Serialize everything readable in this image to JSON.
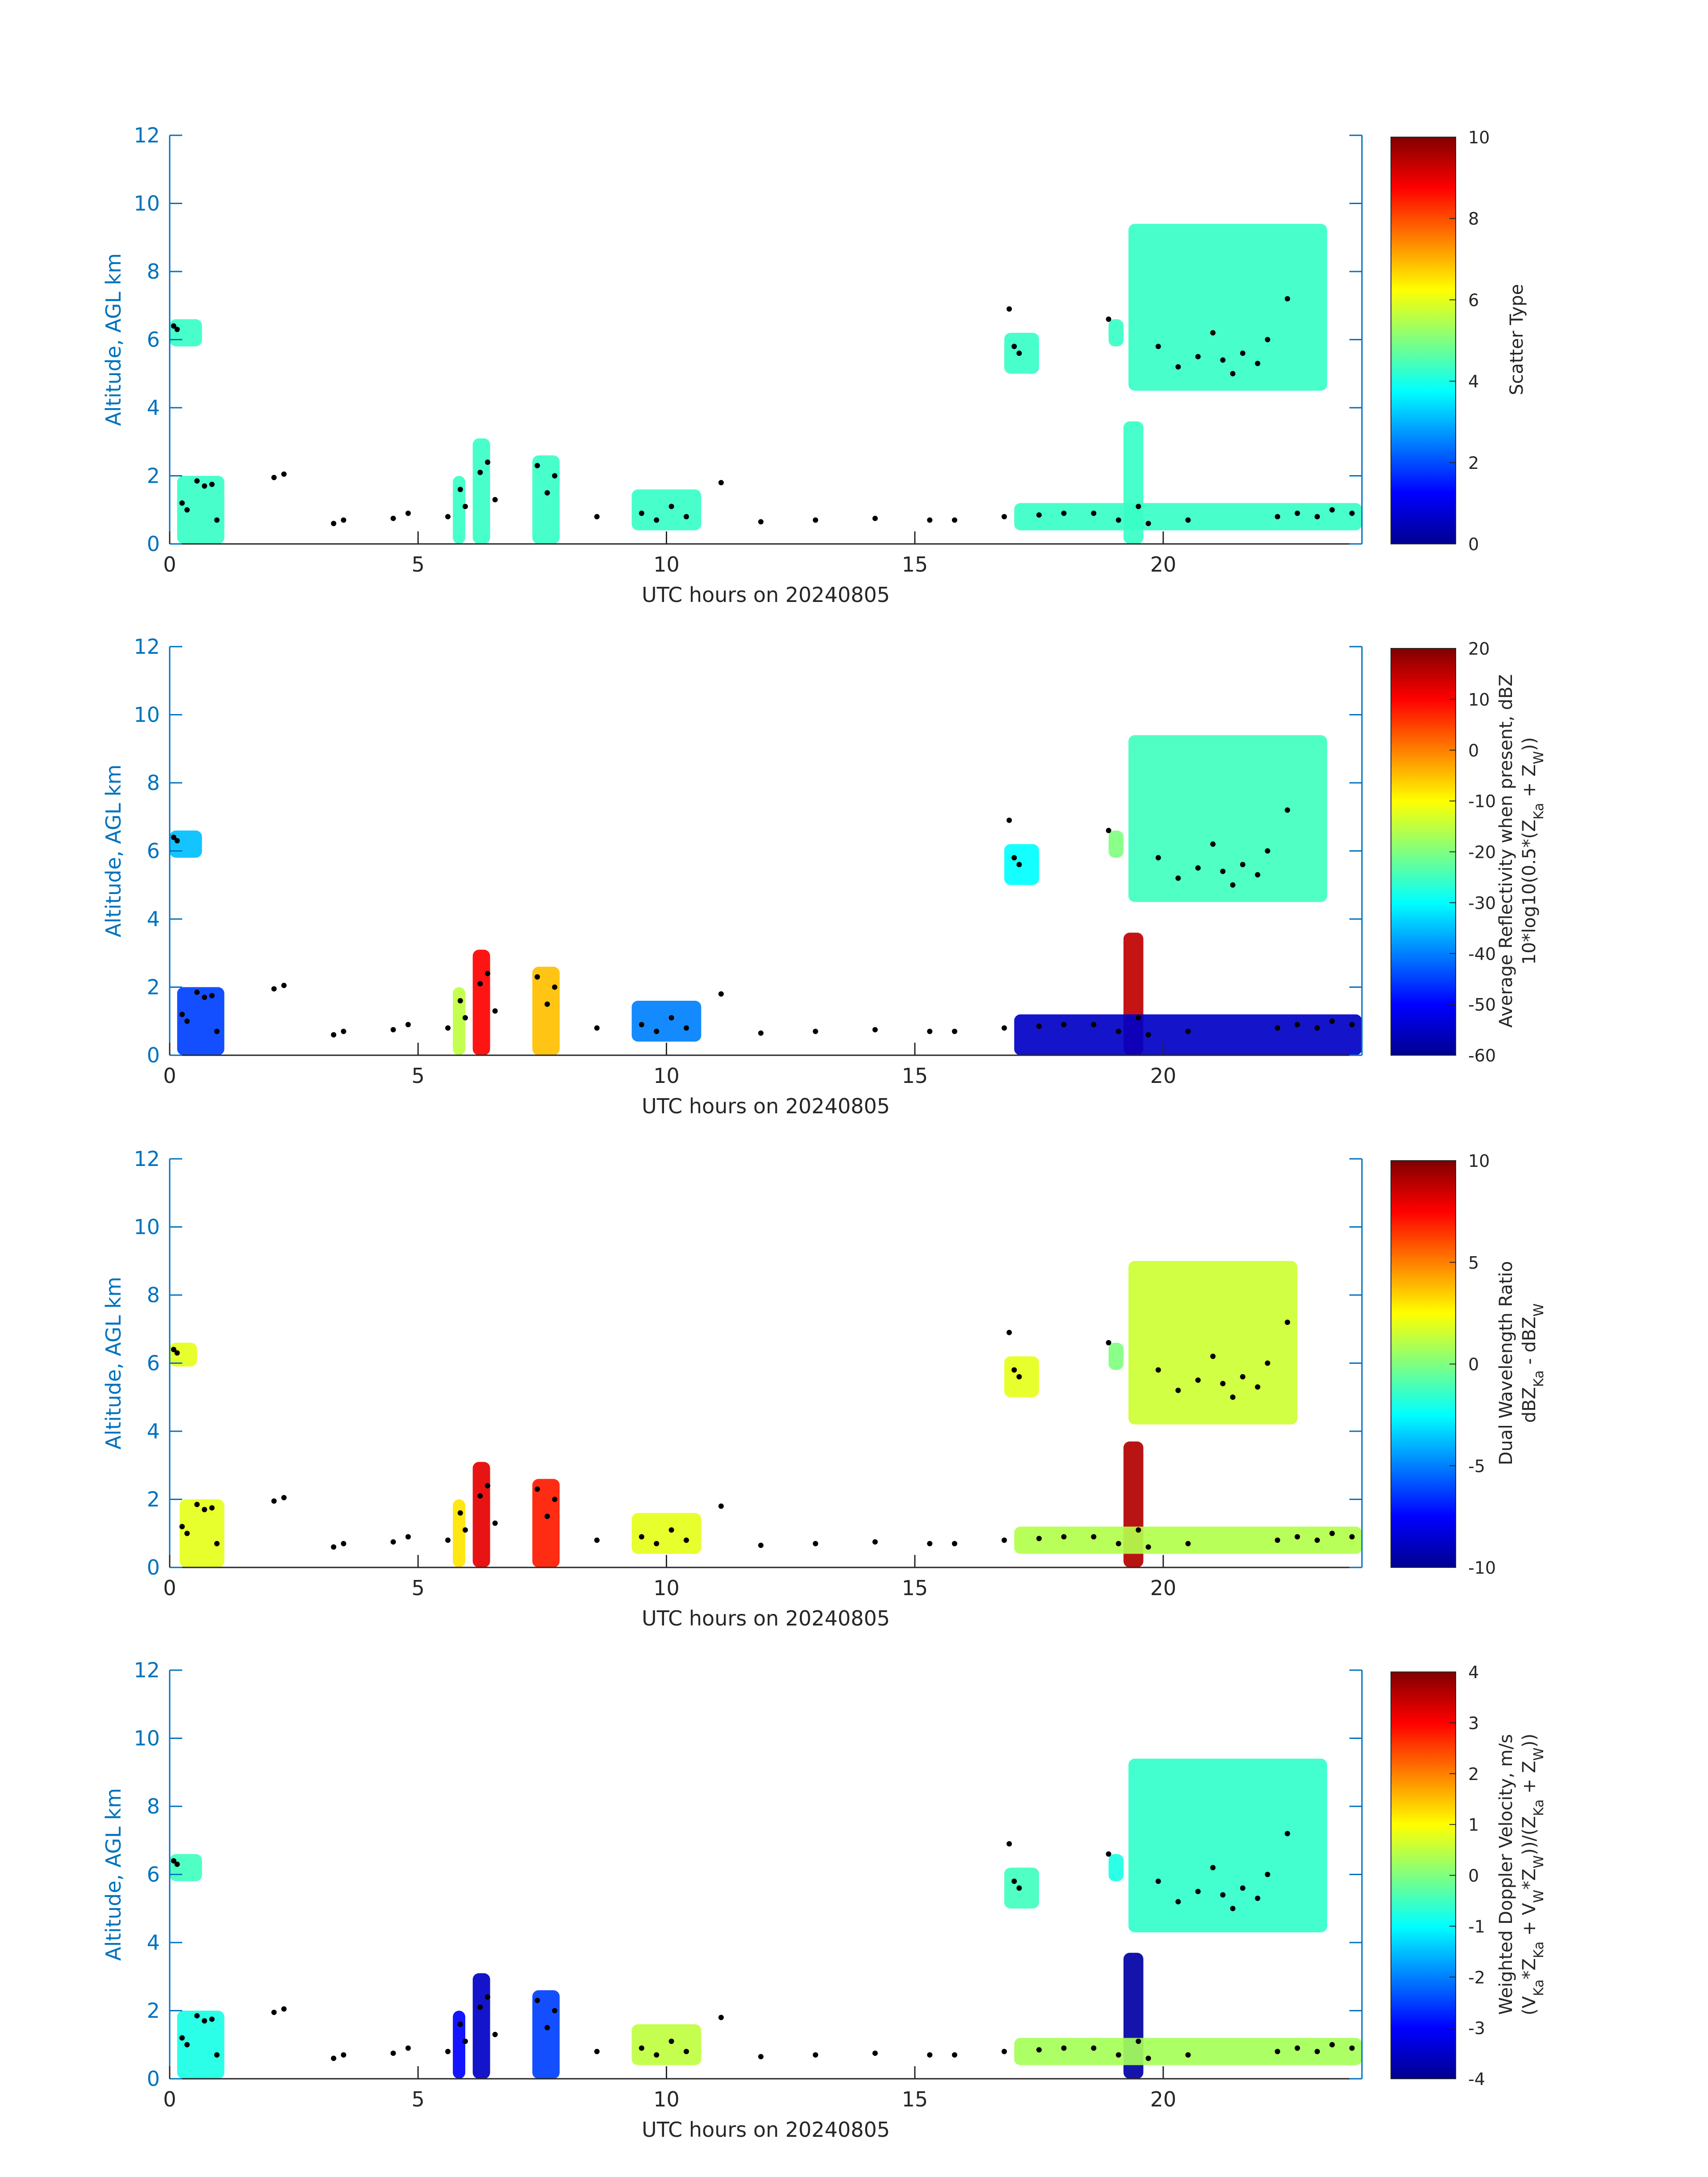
{
  "figure": {
    "date": "20240805",
    "accent_color": "#0072BD"
  },
  "chart_data": [
    {
      "type": "heatmap",
      "title": "",
      "xlabel": "UTC hours on 20240805",
      "ylabel": "Altitude, AGL km",
      "xlim": [
        0,
        24
      ],
      "ylim": [
        0,
        12
      ],
      "xticks": [
        0,
        5,
        10,
        15,
        20
      ],
      "yticks": [
        0,
        2,
        4,
        6,
        8,
        10,
        12
      ],
      "colorbar": {
        "label_lines": [
          "Scatter Type"
        ],
        "clim": [
          0,
          10
        ],
        "ticks": [
          0,
          2,
          4,
          6,
          8,
          10
        ]
      },
      "cloud_value": 4.3,
      "colormap": "jet",
      "cloud_regions": [
        {
          "t0": 0.0,
          "t1": 0.65,
          "z0": 5.8,
          "z1": 6.6,
          "value": 4.3
        },
        {
          "t0": 0.15,
          "t1": 1.1,
          "z0": 0.0,
          "z1": 2.0,
          "value": 4.3
        },
        {
          "t0": 5.7,
          "t1": 5.95,
          "z0": 0.0,
          "z1": 2.0,
          "value": 4.3
        },
        {
          "t0": 6.1,
          "t1": 6.45,
          "z0": 0.0,
          "z1": 3.1,
          "value": 4.3
        },
        {
          "t0": 7.3,
          "t1": 7.85,
          "z0": 0.0,
          "z1": 2.6,
          "value": 4.3
        },
        {
          "t0": 9.3,
          "t1": 10.7,
          "z0": 0.4,
          "z1": 1.6,
          "value": 4.3
        },
        {
          "t0": 16.8,
          "t1": 17.5,
          "z0": 5.0,
          "z1": 6.2,
          "value": 4.3
        },
        {
          "t0": 18.9,
          "t1": 19.2,
          "z0": 5.8,
          "z1": 6.6,
          "value": 4.3
        },
        {
          "t0": 19.2,
          "t1": 19.6,
          "z0": 0.0,
          "z1": 3.6,
          "value": 4.3
        },
        {
          "t0": 19.3,
          "t1": 23.3,
          "z0": 4.5,
          "z1": 9.4,
          "value": 4.3
        },
        {
          "t0": 17.0,
          "t1": 24.0,
          "z0": 0.4,
          "z1": 1.2,
          "value": 4.3
        }
      ]
    },
    {
      "type": "heatmap",
      "title": "",
      "xlabel": "UTC hours on 20240805",
      "ylabel": "Altitude, AGL km",
      "xlim": [
        0,
        24
      ],
      "ylim": [
        0,
        12
      ],
      "xticks": [
        0,
        5,
        10,
        15,
        20
      ],
      "yticks": [
        0,
        2,
        4,
        6,
        8,
        10,
        12
      ],
      "colorbar": {
        "label_lines": [
          "Average Reflectivity when present, dBZ",
          "10*log10(0.5*(Z",
          "Ka",
          " + Z",
          "W",
          "))"
        ],
        "clim": [
          -60,
          20
        ],
        "ticks": [
          -60,
          -50,
          -40,
          -30,
          -20,
          -10,
          0,
          10,
          20
        ]
      },
      "colormap": "jet",
      "cloud_regions": [
        {
          "t0": 0.0,
          "t1": 0.65,
          "z0": 5.8,
          "z1": 6.6,
          "value": -35
        },
        {
          "t0": 0.15,
          "t1": 1.1,
          "z0": 0.0,
          "z1": 2.0,
          "value": -45
        },
        {
          "t0": 5.7,
          "t1": 5.95,
          "z0": 0.0,
          "z1": 2.0,
          "value": -15
        },
        {
          "t0": 6.1,
          "t1": 6.45,
          "z0": 0.0,
          "z1": 3.1,
          "value": 10
        },
        {
          "t0": 7.3,
          "t1": 7.85,
          "z0": 0.0,
          "z1": 2.6,
          "value": -5
        },
        {
          "t0": 9.3,
          "t1": 10.7,
          "z0": 0.4,
          "z1": 1.6,
          "value": -40
        },
        {
          "t0": 16.8,
          "t1": 17.5,
          "z0": 5.0,
          "z1": 6.2,
          "value": -30
        },
        {
          "t0": 18.9,
          "t1": 19.2,
          "z0": 5.8,
          "z1": 6.6,
          "value": -20
        },
        {
          "t0": 19.2,
          "t1": 19.6,
          "z0": 0.0,
          "z1": 3.6,
          "value": 15
        },
        {
          "t0": 19.3,
          "t1": 23.3,
          "z0": 4.5,
          "z1": 9.4,
          "value": -25
        },
        {
          "t0": 17.0,
          "t1": 24.0,
          "z0": 0.0,
          "z1": 1.2,
          "value": -55
        }
      ]
    },
    {
      "type": "heatmap",
      "title": "",
      "xlabel": "UTC hours on 20240805",
      "ylabel": "Altitude, AGL km",
      "xlim": [
        0,
        24
      ],
      "ylim": [
        0,
        12
      ],
      "xticks": [
        0,
        5,
        10,
        15,
        20
      ],
      "yticks": [
        0,
        2,
        4,
        6,
        8,
        10,
        12
      ],
      "colorbar": {
        "label_lines": [
          "Dual Wavelength Ratio",
          "dBZ",
          "Ka",
          " - dBZ",
          "W"
        ],
        "clim": [
          -10,
          10
        ],
        "ticks": [
          -10,
          -5,
          0,
          5,
          10
        ]
      },
      "colormap": "jet",
      "cloud_regions": [
        {
          "t0": 0.0,
          "t1": 0.55,
          "z0": 5.9,
          "z1": 6.6,
          "value": 2
        },
        {
          "t0": 0.2,
          "t1": 1.1,
          "z0": 0.0,
          "z1": 2.0,
          "value": 2
        },
        {
          "t0": 5.7,
          "t1": 5.95,
          "z0": 0.0,
          "z1": 2.0,
          "value": 3
        },
        {
          "t0": 6.1,
          "t1": 6.45,
          "z0": 0.0,
          "z1": 3.1,
          "value": 8
        },
        {
          "t0": 7.3,
          "t1": 7.85,
          "z0": 0.0,
          "z1": 2.6,
          "value": 7
        },
        {
          "t0": 9.3,
          "t1": 10.7,
          "z0": 0.4,
          "z1": 1.6,
          "value": 2
        },
        {
          "t0": 16.8,
          "t1": 17.5,
          "z0": 5.0,
          "z1": 6.2,
          "value": 2
        },
        {
          "t0": 18.9,
          "t1": 19.2,
          "z0": 5.8,
          "z1": 6.6,
          "value": 0
        },
        {
          "t0": 19.2,
          "t1": 19.6,
          "z0": 0.0,
          "z1": 3.7,
          "value": 9
        },
        {
          "t0": 19.3,
          "t1": 22.7,
          "z0": 4.2,
          "z1": 9.0,
          "value": 1.5
        },
        {
          "t0": 17.0,
          "t1": 24.0,
          "z0": 0.4,
          "z1": 1.2,
          "value": 1
        }
      ]
    },
    {
      "type": "heatmap",
      "title": "",
      "xlabel": "UTC hours on 20240805",
      "ylabel": "Altitude, AGL km",
      "xlim": [
        0,
        24
      ],
      "ylim": [
        0,
        12
      ],
      "xticks": [
        0,
        5,
        10,
        15,
        20
      ],
      "yticks": [
        0,
        2,
        4,
        6,
        8,
        10,
        12
      ],
      "colorbar": {
        "label_lines": [
          "Weighted Doppler Velocity, m/s",
          "(V",
          "Ka",
          "*Z",
          "Ka",
          " + V",
          "W",
          "*Z",
          "W",
          "))/(Z",
          "Ka",
          " + Z",
          "W",
          "))"
        ],
        "clim": [
          -4,
          4
        ],
        "ticks": [
          -4,
          -3,
          -2,
          -1,
          0,
          1,
          2,
          3,
          4
        ]
      },
      "colormap": "jet",
      "cloud_regions": [
        {
          "t0": 0.0,
          "t1": 0.65,
          "z0": 5.8,
          "z1": 6.6,
          "value": -0.5
        },
        {
          "t0": 0.15,
          "t1": 1.1,
          "z0": 0.0,
          "z1": 2.0,
          "value": -0.8
        },
        {
          "t0": 5.7,
          "t1": 5.95,
          "z0": 0.0,
          "z1": 2.0,
          "value": -3
        },
        {
          "t0": 6.1,
          "t1": 6.45,
          "z0": 0.0,
          "z1": 3.1,
          "value": -3.5
        },
        {
          "t0": 7.3,
          "t1": 7.85,
          "z0": 0.0,
          "z1": 2.6,
          "value": -2.5
        },
        {
          "t0": 9.3,
          "t1": 10.7,
          "z0": 0.4,
          "z1": 1.6,
          "value": 0.5
        },
        {
          "t0": 16.8,
          "t1": 17.5,
          "z0": 5.0,
          "z1": 6.2,
          "value": -0.5
        },
        {
          "t0": 18.9,
          "t1": 19.2,
          "z0": 5.8,
          "z1": 6.6,
          "value": -0.8
        },
        {
          "t0": 19.2,
          "t1": 19.6,
          "z0": 0.0,
          "z1": 3.7,
          "value": -3.8
        },
        {
          "t0": 19.3,
          "t1": 23.3,
          "z0": 4.3,
          "z1": 9.4,
          "value": -0.6
        },
        {
          "t0": 17.0,
          "t1": 24.0,
          "z0": 0.4,
          "z1": 1.2,
          "value": 0.3
        }
      ]
    }
  ],
  "cloud_base_points": [
    [
      0.08,
      6.4
    ],
    [
      0.15,
      6.3
    ],
    [
      0.25,
      1.2
    ],
    [
      0.35,
      1.0
    ],
    [
      0.55,
      1.85
    ],
    [
      0.7,
      1.7
    ],
    [
      0.85,
      1.75
    ],
    [
      0.95,
      0.7
    ],
    [
      2.1,
      1.95
    ],
    [
      2.3,
      2.05
    ],
    [
      3.3,
      0.6
    ],
    [
      3.5,
      0.7
    ],
    [
      4.5,
      0.75
    ],
    [
      4.8,
      0.9
    ],
    [
      5.6,
      0.8
    ],
    [
      5.85,
      1.6
    ],
    [
      5.95,
      1.1
    ],
    [
      6.25,
      2.1
    ],
    [
      6.4,
      2.4
    ],
    [
      6.55,
      1.3
    ],
    [
      7.4,
      2.3
    ],
    [
      7.6,
      1.5
    ],
    [
      7.75,
      2.0
    ],
    [
      8.6,
      0.8
    ],
    [
      9.5,
      0.9
    ],
    [
      9.8,
      0.7
    ],
    [
      10.1,
      1.1
    ],
    [
      10.4,
      0.8
    ],
    [
      11.1,
      1.8
    ],
    [
      11.9,
      0.65
    ],
    [
      13.0,
      0.7
    ],
    [
      14.2,
      0.75
    ],
    [
      15.3,
      0.7
    ],
    [
      15.8,
      0.7
    ],
    [
      16.8,
      0.8
    ],
    [
      16.9,
      6.9
    ],
    [
      17.0,
      5.8
    ],
    [
      17.1,
      5.6
    ],
    [
      17.5,
      0.85
    ],
    [
      18.0,
      0.9
    ],
    [
      18.6,
      0.9
    ],
    [
      18.9,
      6.6
    ],
    [
      19.1,
      0.7
    ],
    [
      19.5,
      1.1
    ],
    [
      19.7,
      0.6
    ],
    [
      19.9,
      5.8
    ],
    [
      20.3,
      5.2
    ],
    [
      20.5,
      0.7
    ],
    [
      20.7,
      5.5
    ],
    [
      21.0,
      6.2
    ],
    [
      21.2,
      5.4
    ],
    [
      21.4,
      5.0
    ],
    [
      21.6,
      5.6
    ],
    [
      21.9,
      5.3
    ],
    [
      22.1,
      6.0
    ],
    [
      22.3,
      0.8
    ],
    [
      22.5,
      7.2
    ],
    [
      22.7,
      0.9
    ],
    [
      23.1,
      0.8
    ],
    [
      23.4,
      1.0
    ],
    [
      23.8,
      0.9
    ]
  ]
}
